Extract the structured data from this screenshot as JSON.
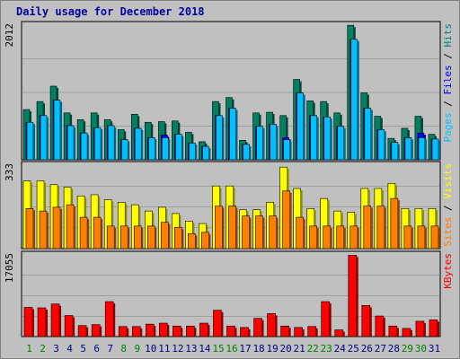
{
  "chart_data": {
    "type": "bar",
    "title": "Daily usage for December 2018",
    "categories": [
      "1",
      "2",
      "3",
      "4",
      "5",
      "6",
      "7",
      "8",
      "9",
      "10",
      "11",
      "12",
      "13",
      "14",
      "15",
      "16",
      "17",
      "18",
      "19",
      "20",
      "21",
      "22",
      "23",
      "24",
      "25",
      "26",
      "27",
      "28",
      "29",
      "30",
      "31"
    ],
    "weekend_days": [
      "1",
      "2",
      "8",
      "9",
      "15",
      "16",
      "22",
      "23",
      "29",
      "30"
    ],
    "panels": [
      {
        "id": "hits-files-pages",
        "ymax": 2012,
        "ymax_label": "2012",
        "legend": [
          {
            "text": "Pages",
            "color": "#00c0ff"
          },
          {
            "text": " / ",
            "color": "#000000"
          },
          {
            "text": "Files",
            "color": "#0000ff"
          },
          {
            "text": " / ",
            "color": "#000000"
          },
          {
            "text": "Hits",
            "color": "#008080"
          }
        ],
        "series": [
          {
            "name": "Hits",
            "color": "#008060",
            "values": [
              750,
              870,
              1100,
              700,
              600,
              700,
              600,
              450,
              680,
              560,
              570,
              580,
              410,
              270,
              870,
              930,
              290,
              700,
              710,
              660,
              1200,
              880,
              870,
              700,
              2010,
              1000,
              650,
              320,
              470,
              650,
              380
            ]
          },
          {
            "name": "Files",
            "color": "#0000ff",
            "values": [
              560,
              660,
              890,
              510,
              400,
              480,
              510,
              300,
              470,
              330,
              370,
              380,
              250,
              200,
              660,
              770,
              230,
              500,
              530,
              330,
              1000,
              660,
              640,
              500,
              1800,
              770,
              450,
              260,
              330,
              400,
              310
            ]
          },
          {
            "name": "Pages",
            "color": "#00c0ff",
            "values": [
              560,
              660,
              890,
              510,
              400,
              480,
              510,
              300,
              470,
              330,
              330,
              380,
              250,
              200,
              660,
              770,
              230,
              500,
              530,
              300,
              1000,
              660,
              640,
              500,
              1800,
              770,
              450,
              260,
              330,
              330,
              310
            ]
          }
        ]
      },
      {
        "id": "visits-sites",
        "ymax": 333,
        "ymax_label": "333",
        "legend": [
          {
            "text": "Sites",
            "color": "#ff8000"
          },
          {
            "text": " / ",
            "color": "#000000"
          },
          {
            "text": "Visits",
            "color": "#ffff00"
          }
        ],
        "series": [
          {
            "name": "Visits",
            "color": "#ffff00",
            "values": [
              270,
              270,
              255,
              245,
              210,
              215,
              195,
              185,
              175,
              150,
              165,
              140,
              110,
              100,
              250,
              250,
              155,
              155,
              185,
              325,
              240,
              160,
              200,
              150,
              145,
              240,
              240,
              260,
              160,
              160,
              160
            ]
          },
          {
            "name": "Sites",
            "color": "#ff8000",
            "values": [
              160,
              150,
              165,
              175,
              125,
              125,
              90,
              90,
              90,
              90,
              105,
              85,
              60,
              65,
              170,
              170,
              130,
              130,
              130,
              230,
              125,
              90,
              90,
              90,
              90,
              170,
              170,
              200,
              90,
              90,
              90
            ]
          }
        ]
      },
      {
        "id": "kbytes",
        "ymax": 17055,
        "ymax_label": "17055",
        "legend": [
          {
            "text": "KBytes",
            "color": "#ff0000"
          }
        ],
        "series": [
          {
            "name": "KBytes",
            "color": "#ff0000",
            "values": [
              6100,
              6000,
              6800,
              4400,
              2300,
              2500,
              7300,
              2100,
              2100,
              2600,
              2800,
              2200,
              2200,
              2800,
              5500,
              2200,
              1900,
              3800,
              4800,
              2200,
              1900,
              2100,
              7300,
              1400,
              17000,
              6500,
              4300,
              2200,
              1700,
              3200,
              3500
            ]
          }
        ]
      }
    ],
    "colors": {
      "plot_bg": "#c0c0c0",
      "plot_border": "#000000",
      "frame_bg": "#c0c0c0",
      "title": "#0000a0",
      "weekday_tick": "#000080",
      "weekend_tick": "#008000",
      "gridline": "#808080"
    }
  }
}
